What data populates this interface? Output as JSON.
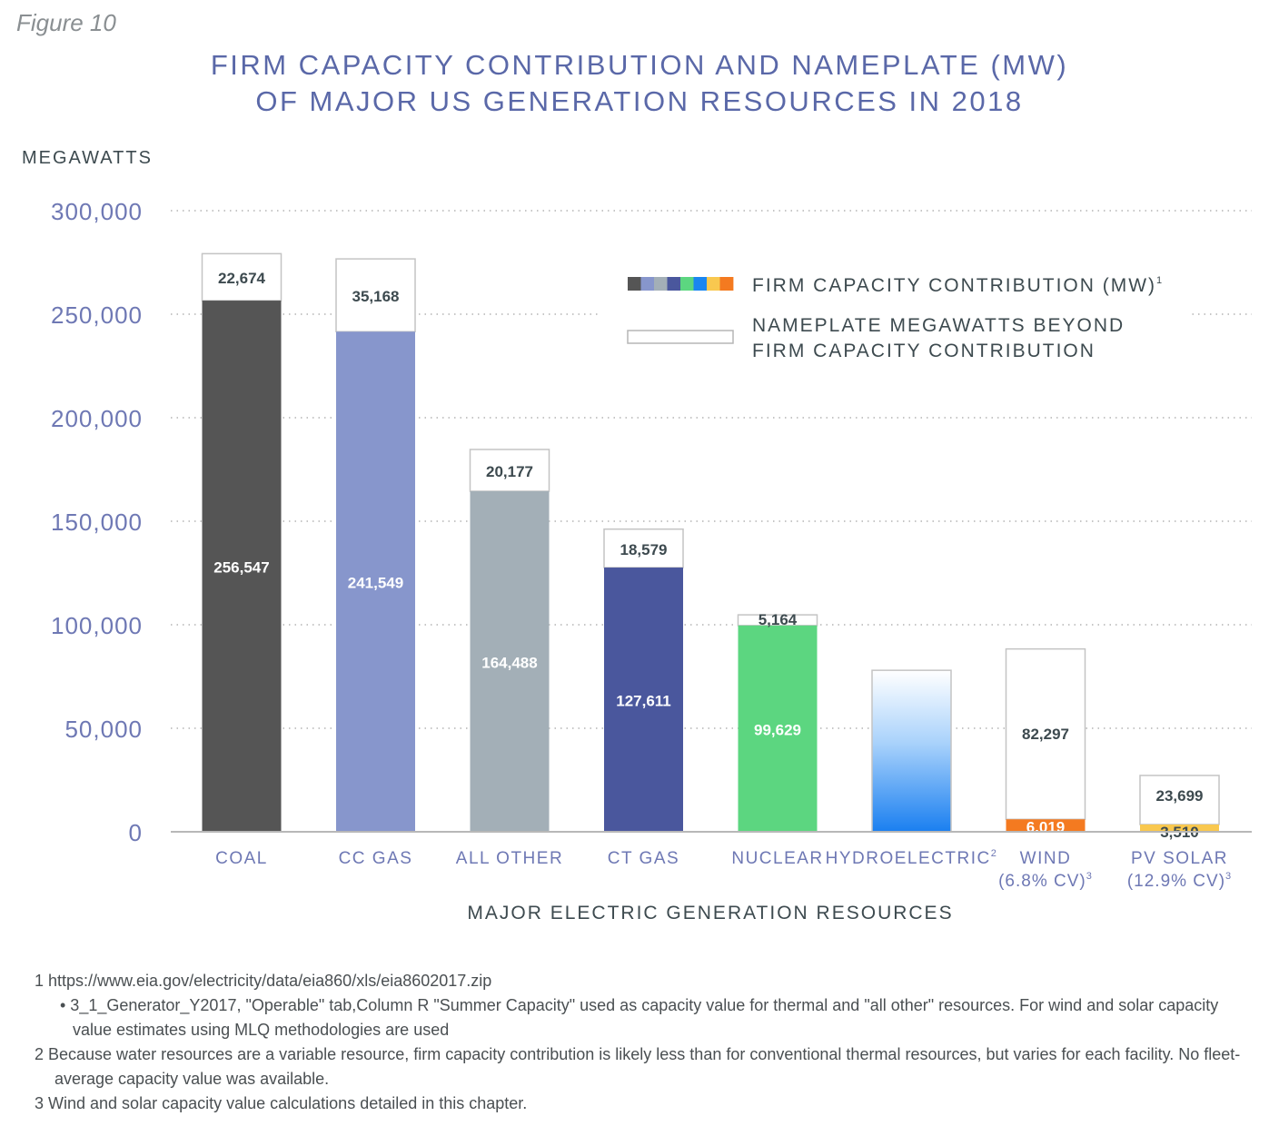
{
  "figure_label": "Figure 10",
  "chart_data": {
    "type": "bar",
    "stacked": true,
    "title_lines": [
      "FIRM CAPACITY CONTRIBUTION AND NAMEPLATE (MW)",
      "OF MAJOR US GENERATION RESOURCES IN 2018"
    ],
    "ylabel": "MEGAWATTS",
    "xlabel": "MAJOR ELECTRIC GENERATION RESOURCES",
    "ylim": [
      0,
      300000
    ],
    "yticks": [
      0,
      50000,
      100000,
      150000,
      200000,
      250000,
      300000
    ],
    "ytick_labels": [
      "0",
      "50,000",
      "100,000",
      "150,000",
      "200,000",
      "250,000",
      "300,000"
    ],
    "grid": "horizontal dotted",
    "legend_position": "top-right",
    "legend": {
      "firm": "FIRM CAPACITY CONTRIBUTION (MW)",
      "firm_sup": "1",
      "nameplate_line1": "NAMEPLATE MEGAWATTS BEYOND",
      "nameplate_line2": "FIRM CAPACITY CONTRIBUTION",
      "swatch_colors": [
        "#555555",
        "#8796cc",
        "#a3afb7",
        "#4a579d",
        "#5cd680",
        "#1a86f0",
        "#f9c84f",
        "#f47a20"
      ]
    },
    "categories": [
      {
        "label": "COAL",
        "sub": "",
        "sup": "",
        "firm": 256547,
        "nameplate_extra": 22674,
        "firm_label": "256,547",
        "extra_label": "22,674",
        "color": "#555555"
      },
      {
        "label": "CC GAS",
        "sub": "",
        "sup": "",
        "firm": 241549,
        "nameplate_extra": 35168,
        "firm_label": "241,549",
        "extra_label": "35,168",
        "color": "#8796cc"
      },
      {
        "label": "ALL OTHER",
        "sub": "",
        "sup": "",
        "firm": 164488,
        "nameplate_extra": 20177,
        "firm_label": "164,488",
        "extra_label": "20,177",
        "color": "#a3afb7"
      },
      {
        "label": "CT GAS",
        "sub": "",
        "sup": "",
        "firm": 127611,
        "nameplate_extra": 18579,
        "firm_label": "127,611",
        "extra_label": "18,579",
        "color": "#4a579d"
      },
      {
        "label": "NUCLEAR",
        "sub": "",
        "sup": "",
        "firm": 99629,
        "nameplate_extra": 5164,
        "firm_label": "99,629",
        "extra_label": "5,164",
        "color": "#5cd680"
      },
      {
        "label": "HYDROELECTRIC",
        "sub": "",
        "sup": "2",
        "total": 78000,
        "gradient": true,
        "color": "#1a86f0"
      },
      {
        "label": "WIND",
        "sub": "(6.8% CV)",
        "sup": "3",
        "firm": 6019,
        "nameplate_extra": 82297,
        "firm_label": "6,019",
        "extra_label": "82,297",
        "color": "#f47a20"
      },
      {
        "label": "PV SOLAR",
        "sub": "(12.9% CV)",
        "sup": "3",
        "firm": 3510,
        "nameplate_extra": 23699,
        "firm_label": "3,510",
        "extra_label": "23,699",
        "color": "#f9c84f"
      }
    ]
  },
  "footnotes": {
    "fn1": "1  https://www.eia.gov/electricity/data/eia860/xls/eia8602017.zip",
    "fn1_bullet": "• 3_1_Generator_Y2017, \"Operable\" tab,Column R \"Summer Capacity\" used as capacity value for thermal and \"all other\" resources. For wind and solar capacity value estimates using MLQ methodologies are used",
    "fn2": "2  Because water resources are a variable resource, firm capacity contribution is likely less than for conventional thermal resources, but varies for each facility. No fleet-average capacity value was available.",
    "fn3": "3  Wind and solar capacity value calculations detailed in this chapter."
  }
}
